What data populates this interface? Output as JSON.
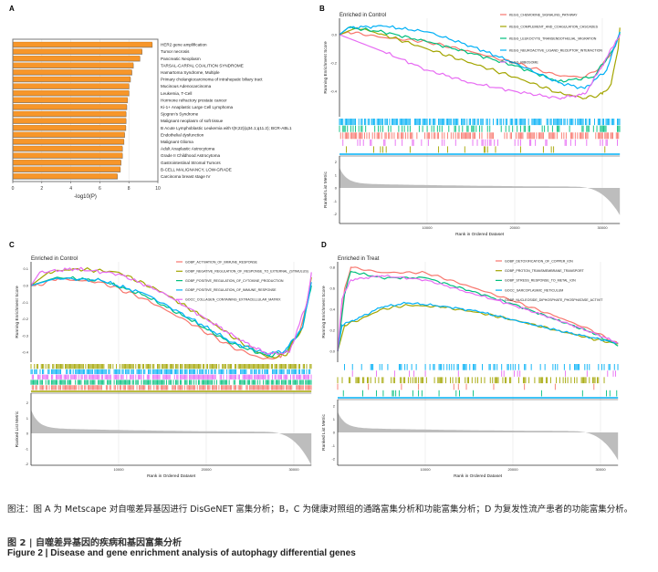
{
  "panels": {
    "a": "A",
    "b": "B",
    "c": "C",
    "d": "D"
  },
  "chart_data": [
    {
      "id": "A",
      "type": "bar",
      "orientation": "horizontal",
      "title": "",
      "xlabel": "-log10(P)",
      "ylabel": "",
      "xlim": [
        0,
        10
      ],
      "xticks": [
        "0",
        "2",
        "4",
        "6",
        "8",
        "10"
      ],
      "bar_color": "#F7962A",
      "categories": [
        "HER2 gene amplification",
        "Tumor necrosis",
        "Pancreatic Neoplasm",
        "TARSAL-CARPAL COALITION SYNDROME",
        "Hamartoma Syndrome, Multiple",
        "Primary cholangiocarcinoma of intrahepatic biliary tract",
        "Mucinous Adenocarcinoma",
        "Leukemia, T-Cell",
        "Hormone refractory prostate cancer",
        "Ki-1+ Anaplastic Large Cell Lymphoma",
        "Sjogren's Syndrome",
        "Malignant neoplasm of soft tissue",
        "B Acute Lymphoblastic Leukemia with t(9;22)(q34.1;q11.2); BCR-ABL1",
        "Endothelial dysfunction",
        "Malignant Glioma",
        "Adult Anaplastic Astrocytoma",
        "Grade II Childhood Astrocytoma",
        "Gastrointestinal Stromal Tumors",
        "B-CELL MALIGNANCY, LOW-GRADE",
        "Carcinoma breast stage IV"
      ],
      "values": [
        9.6,
        8.9,
        8.75,
        8.3,
        8.2,
        8.1,
        8.0,
        8.0,
        7.9,
        7.85,
        7.8,
        7.8,
        7.78,
        7.7,
        7.65,
        7.55,
        7.55,
        7.45,
        7.4,
        7.2
      ]
    },
    {
      "id": "B",
      "type": "line",
      "title": "Enriched in Control",
      "ylabel": "Running Enrichment Score",
      "ylabel2": "Ranked List Metric",
      "xlabel": "Rank in Ordered Dataset",
      "xlim": [
        0,
        32000
      ],
      "xticks": [
        "10000",
        "20000",
        "30000"
      ],
      "yticks": [
        "0.0",
        "-0.2",
        "-0.4"
      ],
      "y2ticks": [
        "2",
        "1",
        "0",
        "-1",
        "-2"
      ],
      "legend": "top-right",
      "series": [
        {
          "name": "KEGG_CHEMOKINE_SIGNALING_PATHWAY",
          "color": "#F8766D",
          "x": [
            0,
            1000,
            5000,
            10000,
            15000,
            20000,
            25000,
            28000,
            30000,
            31500,
            32000
          ],
          "y": [
            0,
            0.02,
            -0.02,
            -0.05,
            -0.12,
            -0.2,
            -0.29,
            -0.3,
            -0.22,
            -0.08,
            0
          ]
        },
        {
          "name": "KEGG_COMPLEMENT_AND_COAGULATION_CASCADES",
          "color": "#A3A500",
          "x": [
            0,
            2000,
            5000,
            10000,
            15000,
            20000,
            25000,
            28000,
            30000,
            31000,
            31800,
            32000
          ],
          "y": [
            0,
            0.05,
            0,
            -0.1,
            -0.2,
            -0.3,
            -0.41,
            -0.45,
            -0.42,
            -0.35,
            -0.1,
            0.05
          ]
        },
        {
          "name": "KEGG_LEUKOCYTE_TRANSENDOTHELIAL_MIGRATION",
          "color": "#00BF7D",
          "x": [
            0,
            1000,
            5000,
            10000,
            15000,
            20000,
            25000,
            29000,
            31500,
            32000
          ],
          "y": [
            0,
            0.05,
            0.02,
            -0.05,
            -0.13,
            -0.22,
            -0.33,
            -0.3,
            -0.08,
            0.02
          ]
        },
        {
          "name": "KEGG_NEUROACTIVE_LIGAND_RECEPTOR_INTERACTION",
          "color": "#00B0F6",
          "x": [
            0,
            1000,
            5000,
            10000,
            15000,
            20000,
            25000,
            28000,
            30500,
            32000
          ],
          "y": [
            0,
            0.05,
            0.06,
            0.02,
            -0.08,
            -0.2,
            -0.34,
            -0.38,
            -0.25,
            0.02
          ]
        },
        {
          "name": "KEGG_RIBOSOME",
          "color": "#E76BF3",
          "x": [
            0,
            5000,
            10000,
            15000,
            20000,
            25000,
            28000,
            30000,
            31500,
            32000
          ],
          "y": [
            0,
            -0.12,
            -0.25,
            -0.34,
            -0.4,
            -0.45,
            -0.42,
            -0.22,
            -0.05,
            0
          ]
        }
      ]
    },
    {
      "id": "C",
      "type": "line",
      "title": "Enriched in Control",
      "ylabel": "Running Enrichment Score",
      "ylabel2": "Ranked List Metric",
      "xlabel": "Rank in Ordered Dataset",
      "xlim": [
        0,
        32000
      ],
      "xticks": [
        "10000",
        "20000",
        "30000"
      ],
      "yticks": [
        "0.1",
        "0.0",
        "-0.1",
        "-0.2",
        "-0.3",
        "-0.4"
      ],
      "y2ticks": [
        "2",
        "1",
        "0",
        "-1",
        "-2"
      ],
      "legend": "top-right",
      "series": [
        {
          "name": "GOBP_ACTIVATION_OF_IMMUNE_RESPONSE",
          "color": "#F8766D",
          "x": [
            0,
            500,
            3000,
            8000,
            13000,
            18000,
            23000,
            26500,
            28500,
            30500,
            32000
          ],
          "y": [
            0,
            0.0,
            0.04,
            0.02,
            -0.08,
            -0.22,
            -0.37,
            -0.44,
            -0.43,
            -0.3,
            0
          ]
        },
        {
          "name": "GOBP_NEGATIVE_REGULATION_OF_RESPONSE_TO_EXTERNAL_(STIMULUS)",
          "color": "#A3A500",
          "x": [
            0,
            2000,
            5000,
            10000,
            15000,
            20000,
            24000,
            27000,
            29000,
            31000,
            32000
          ],
          "y": [
            0,
            0.08,
            0.1,
            0.08,
            -0.04,
            -0.2,
            -0.34,
            -0.43,
            -0.42,
            -0.25,
            0.05
          ]
        },
        {
          "name": "GOBP_POSITIVE_REGULATION_OF_CYTOKINE_PRODUCTION",
          "color": "#00BF7D",
          "x": [
            0,
            3000,
            8000,
            13000,
            18000,
            23000,
            27000,
            29000,
            31000,
            32000
          ],
          "y": [
            0,
            0.05,
            0.03,
            -0.06,
            -0.2,
            -0.35,
            -0.42,
            -0.4,
            -0.25,
            0
          ]
        },
        {
          "name": "GOBP_POSITIVE_REGULATION_OF_IMMUNE_RESPONSE",
          "color": "#00B0F6",
          "x": [
            0,
            3000,
            8000,
            13000,
            18000,
            23000,
            27000,
            29000,
            31000,
            32000
          ],
          "y": [
            0,
            0.045,
            0.03,
            -0.05,
            -0.19,
            -0.34,
            -0.41,
            -0.39,
            -0.25,
            0.02
          ]
        },
        {
          "name": "GOCC_COLLAGEN_CONTAINING_EXTRACELLULAR_MATRIX",
          "color": "#E76BF3",
          "x": [
            0,
            1000,
            5000,
            10000,
            15000,
            20000,
            24000,
            27000,
            29500,
            31500,
            32000
          ],
          "y": [
            0,
            0.08,
            0.1,
            0.07,
            -0.04,
            -0.2,
            -0.33,
            -0.41,
            -0.4,
            -0.1,
            0.08
          ]
        }
      ]
    },
    {
      "id": "D",
      "type": "line",
      "title": "Enriched in Treat",
      "ylabel": "Running Enrichment Score",
      "ylabel2": "Ranked List Metric",
      "xlabel": "Rank in Ordered Dataset",
      "xlim": [
        0,
        32000
      ],
      "xticks": [
        "10000",
        "20000",
        "30000"
      ],
      "yticks": [
        "0.8",
        "0.6",
        "0.4",
        "0.2",
        "0.0"
      ],
      "y2ticks": [
        "2",
        "1",
        "0",
        "-1",
        "-2"
      ],
      "legend": "top-right",
      "series": [
        {
          "name": "GOBP_DETOXIFICATION_OF_COPPER_ION",
          "color": "#F8766D",
          "x": [
            0,
            800,
            1500,
            5000,
            10000,
            15000,
            20000,
            25000,
            29000,
            32000
          ],
          "y": [
            0,
            0.6,
            0.8,
            0.75,
            0.75,
            0.62,
            0.48,
            0.33,
            0.2,
            0.07
          ]
        },
        {
          "name": "GOBP_PROTON_TRANSMEMBRANE_TRANSPORT",
          "color": "#A3A500",
          "x": [
            0,
            800,
            2500,
            5000,
            8000,
            12000,
            16000,
            20000,
            25000,
            29000,
            32000
          ],
          "y": [
            0,
            0.25,
            0.3,
            0.4,
            0.44,
            0.42,
            0.37,
            0.3,
            0.2,
            0.12,
            0.07
          ]
        },
        {
          "name": "GOBP_STRESS_RESPONSE_TO_METAL_ION",
          "color": "#00BF7D",
          "x": [
            0,
            800,
            1500,
            5000,
            10000,
            15000,
            20000,
            25000,
            29000,
            32000
          ],
          "y": [
            0,
            0.55,
            0.76,
            0.7,
            0.7,
            0.58,
            0.45,
            0.3,
            0.18,
            0.05
          ]
        },
        {
          "name": "GOCC_SARCOPLASMIC_RETICULUM",
          "color": "#00B0F6",
          "x": [
            0,
            500,
            2000,
            5000,
            8000,
            12000,
            16000,
            20000,
            25000,
            29000,
            32000
          ],
          "y": [
            0,
            0.25,
            0.3,
            0.42,
            0.46,
            0.43,
            0.38,
            0.3,
            0.2,
            0.13,
            0.08
          ]
        },
        {
          "name": "GOBP_NUCLEOSIDE_DIPHOSPHATE_PHOSPHATASE_ACTIVIT",
          "color": "#E76BF3",
          "x": [
            0,
            500,
            1500,
            5000,
            10000,
            15000,
            20000,
            25000,
            29000,
            32000
          ],
          "y": [
            0,
            0.5,
            0.68,
            0.72,
            0.68,
            0.56,
            0.44,
            0.3,
            0.18,
            0.08
          ]
        }
      ]
    }
  ],
  "caption": {
    "note": "图注：图 A 为 Metscape 对自噬差异基因进行 DisGeNET 富集分析；B，C 为健康对照组的通路富集分析和功能富集分析；D 为复发性流产患者的功能富集分析。",
    "title_cn": "图 2 | 自噬差异基因的疾病和基因富集分析",
    "title_en": "Figure 2 | Disease and gene enrichment analysis of autophagy differential genes"
  }
}
